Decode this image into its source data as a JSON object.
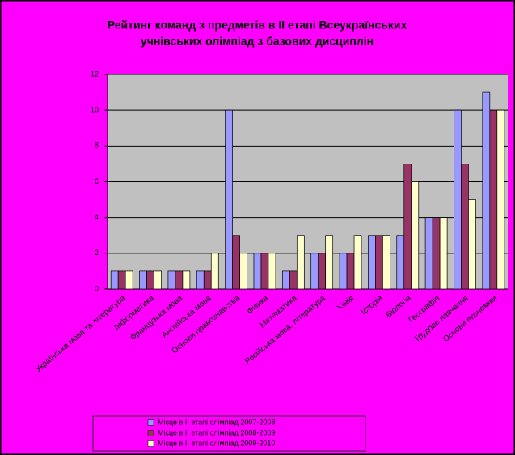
{
  "chart_data": {
    "type": "bar",
    "title": [
      "Рейтинг команд з предметів в ІІ етапі Всеукраїнських",
      "учнівських олімпіад з базових дисциплін"
    ],
    "categories": [
      "Українська мова та література",
      "Інформатика",
      "Французька мова",
      "Англійська мова",
      "Основи правознавства",
      "Фізика",
      "Математика",
      "Російська мова, література",
      "Хімія",
      "Історія",
      "Біологія",
      "Географія",
      "Трудове навчання",
      "Основи економіки"
    ],
    "series": [
      {
        "name": "Місце в ІІ етапі олімпіад 2007-2008",
        "color": "#9999ff",
        "values": [
          1,
          1,
          1,
          1,
          10,
          2,
          1,
          2,
          2,
          3,
          3,
          4,
          10,
          11
        ]
      },
      {
        "name": "Місце в ІІ етапі олімпіад 2008-2009",
        "color": "#993366",
        "values": [
          1,
          1,
          1,
          1,
          3,
          2,
          1,
          2,
          2,
          3,
          7,
          4,
          7,
          10
        ]
      },
      {
        "name": "Місце в ІІ етапі олімпіад 2009-2010",
        "color": "#ffffcc",
        "values": [
          1,
          1,
          1,
          2,
          2,
          2,
          3,
          3,
          3,
          3,
          6,
          4,
          5,
          10
        ]
      }
    ],
    "ylim": [
      0,
      12
    ],
    "yticks": [
      0,
      2,
      4,
      6,
      8,
      10,
      12
    ],
    "grid": true
  }
}
